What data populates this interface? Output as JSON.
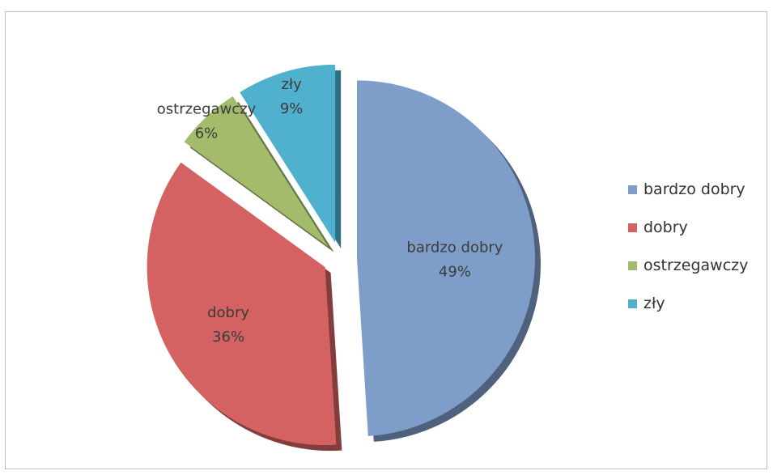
{
  "chart_data": {
    "type": "pie",
    "title": "",
    "slices": [
      {
        "label": "bardzo dobry",
        "value": 49,
        "value_label": "49%",
        "color": "#7f9dc9",
        "exploded": true
      },
      {
        "label": "dobry",
        "value": 36,
        "value_label": "36%",
        "color": "#d46262",
        "exploded": true
      },
      {
        "label": "ostrzegawczy",
        "value": 6,
        "value_label": "6%",
        "color": "#a4bb6c",
        "exploded": true
      },
      {
        "label": "zły",
        "value": 9,
        "value_label": "9%",
        "color": "#4fb1cd",
        "exploded": true
      }
    ],
    "legend": {
      "position": "right",
      "entries": [
        "bardzo dobry",
        "dobry",
        "ostrzegawczy",
        "zły"
      ]
    },
    "style": "3d-exploded"
  }
}
